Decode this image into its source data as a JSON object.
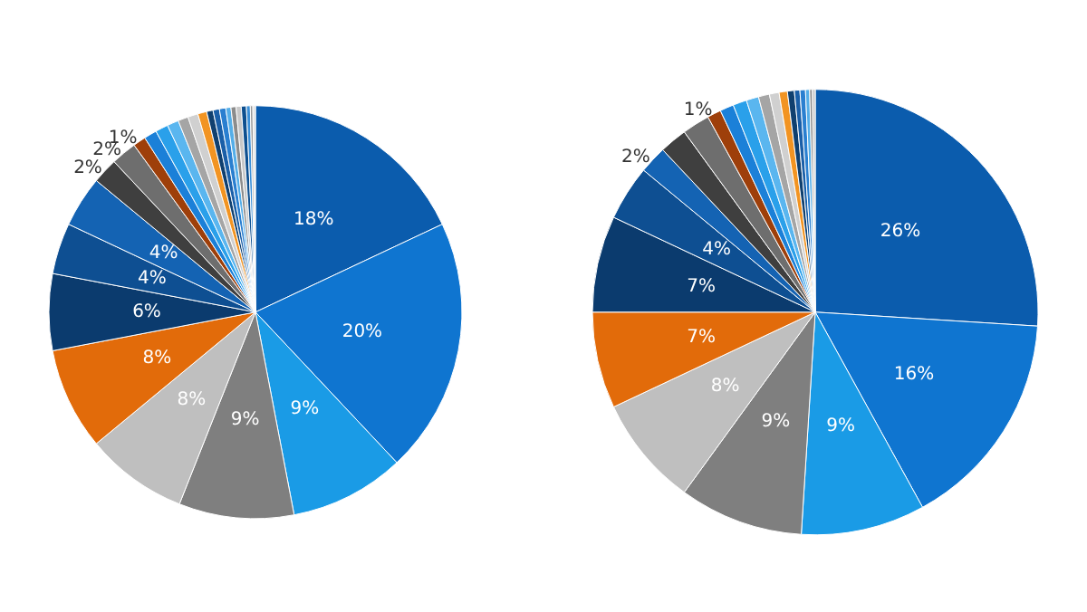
{
  "chart_data": [
    {
      "type": "pie",
      "categories": [
        null,
        null,
        null,
        null,
        null,
        null,
        null,
        null,
        null,
        null,
        null,
        null,
        null,
        null,
        null,
        null,
        null,
        null,
        null,
        null,
        null,
        null,
        null,
        null,
        null,
        null,
        null,
        null
      ],
      "values": [
        18,
        20,
        9,
        9,
        8,
        8,
        6,
        4,
        4,
        2,
        2,
        1,
        1,
        1,
        0.9,
        0.8,
        0.8,
        0.7,
        0.5,
        0.5,
        0.5,
        0.4,
        0.4,
        0.4,
        0.4,
        0.3,
        0.2,
        0.2
      ],
      "colors": [
        "#0b5cad",
        "#0f75d0",
        "#1a9be6",
        "#7f7f7f",
        "#bfbfbf",
        "#e26b0a",
        "#0b3b6e",
        "#0e4f92",
        "#1463b3",
        "#3f3f3f",
        "#6e6e6e",
        "#9e3f0a",
        "#1b80d8",
        "#2aa0ea",
        "#5ab6ef",
        "#a5a5a5",
        "#d0d0d0",
        "#f29422",
        "#10406f",
        "#1a5fa8",
        "#2a7fd0",
        "#55aee8",
        "#8c8c8c",
        "#c8c8c8",
        "#0d4f8f",
        "#3a8fd8",
        "#9a9a9a",
        "#e0e0e0"
      ],
      "value_labels": [
        "18%",
        "20%",
        "9%",
        "9%",
        "8%",
        "8%",
        "6%",
        "4%",
        "4%",
        "2%",
        "2%",
        "1%",
        null,
        null,
        null,
        null,
        null,
        null,
        null,
        null,
        null,
        null,
        null,
        null,
        null,
        null,
        null,
        null
      ]
    },
    {
      "type": "pie",
      "categories": [
        null,
        null,
        null,
        null,
        null,
        null,
        null,
        null,
        null,
        null,
        null,
        null,
        null,
        null,
        null,
        null,
        null,
        null,
        null,
        null,
        null,
        null,
        null,
        null
      ],
      "values": [
        26,
        16,
        9,
        9,
        8,
        7,
        7,
        4,
        2,
        2,
        2,
        1,
        1,
        1,
        0.9,
        0.8,
        0.7,
        0.6,
        0.5,
        0.4,
        0.4,
        0.3,
        0.2,
        0.2
      ],
      "colors": [
        "#0b5cad",
        "#0f75d0",
        "#1a9be6",
        "#7f7f7f",
        "#bfbfbf",
        "#e26b0a",
        "#0b3b6e",
        "#0e4f92",
        "#1463b3",
        "#3f3f3f",
        "#6e6e6e",
        "#9e3f0a",
        "#1b80d8",
        "#2aa0ea",
        "#5ab6ef",
        "#a5a5a5",
        "#d0d0d0",
        "#f29422",
        "#10406f",
        "#1a5fa8",
        "#2a7fd0",
        "#55aee8",
        "#8c8c8c",
        "#c8c8c8"
      ],
      "value_labels": [
        "26%",
        "16%",
        "9%",
        "9%",
        "8%",
        "7%",
        "7%",
        "4%",
        "2%",
        null,
        null,
        "1%",
        null,
        null,
        null,
        null,
        null,
        null,
        null,
        null,
        null,
        null,
        null,
        null
      ]
    }
  ]
}
